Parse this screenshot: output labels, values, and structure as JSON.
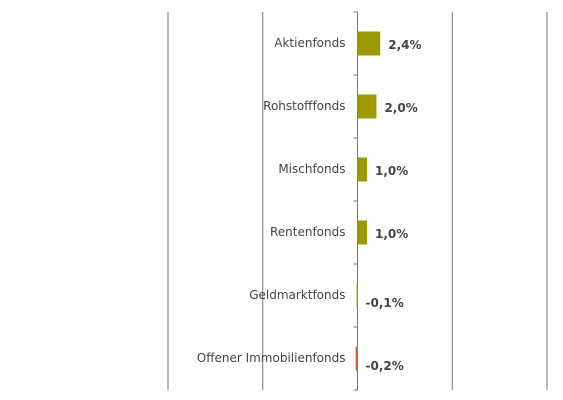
{
  "chart_data": {
    "type": "bar",
    "orientation": "horizontal",
    "categories": [
      "Aktienfonds",
      "Rohstofffonds",
      "Mischfonds",
      "Rentenfonds",
      "Geldmarktfonds",
      "Offener Immobilienfonds"
    ],
    "values": [
      2.4,
      2.0,
      1.0,
      1.0,
      -0.1,
      -0.2
    ],
    "value_labels": [
      "2,4%",
      "2,0%",
      "1,0%",
      "1,0%",
      "-0,1%",
      "-0,2%"
    ],
    "colors": [
      "#9c9a00",
      "#9c9a00",
      "#9c9a00",
      "#9c9a00",
      "#9c9a00",
      "#d2643c"
    ],
    "xlim": [
      -20,
      20
    ],
    "xticks": [
      -20,
      -10,
      0,
      10,
      20
    ],
    "grid": true,
    "tick_labels": false
  }
}
